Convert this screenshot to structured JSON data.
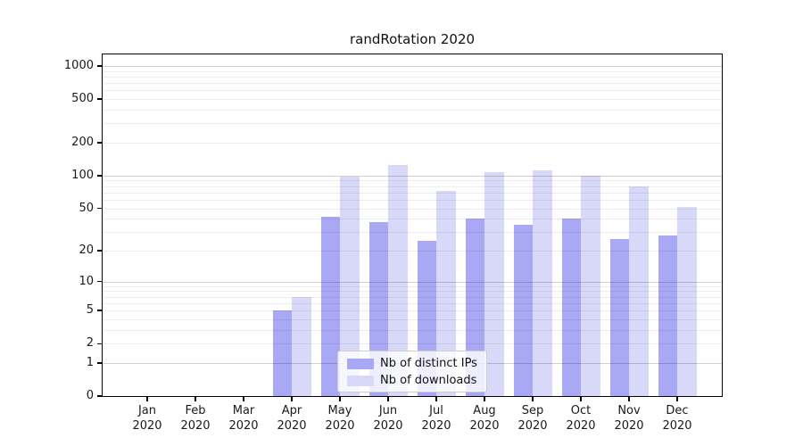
{
  "title": "randRotation 2020",
  "chart_data": {
    "type": "bar",
    "title": "randRotation 2020",
    "categories": [
      "Jan 2020",
      "Feb 2020",
      "Mar 2020",
      "Apr 2020",
      "May 2020",
      "Jun 2020",
      "Jul 2020",
      "Aug 2020",
      "Sep 2020",
      "Oct 2020",
      "Nov 2020",
      "Dec 2020"
    ],
    "series": [
      {
        "name": "Nb of distinct IPs",
        "color": "#a8a8f5",
        "values": [
          0,
          0,
          0,
          5,
          42,
          37,
          25,
          40,
          35,
          40,
          26,
          28
        ]
      },
      {
        "name": "Nb of downloads",
        "color": "#d8d8f9",
        "values": [
          0,
          0,
          0,
          7,
          98,
          126,
          72,
          108,
          111,
          100,
          79,
          51
        ]
      }
    ],
    "xlabel": "",
    "ylabel": "",
    "yscale": "log1p",
    "y_ticks": [
      0,
      1,
      2,
      5,
      10,
      20,
      50,
      100,
      200,
      500,
      1000
    ],
    "ylim": [
      0,
      1300
    ],
    "grid": "horizontal-minor-log",
    "legend_position": "lower-center",
    "colors": {
      "major_grid": "rgba(0,0,0,0.18)",
      "minor_grid": "rgba(0,0,0,0.07)",
      "spine": "#000000",
      "text": "#1a1a1a"
    }
  }
}
